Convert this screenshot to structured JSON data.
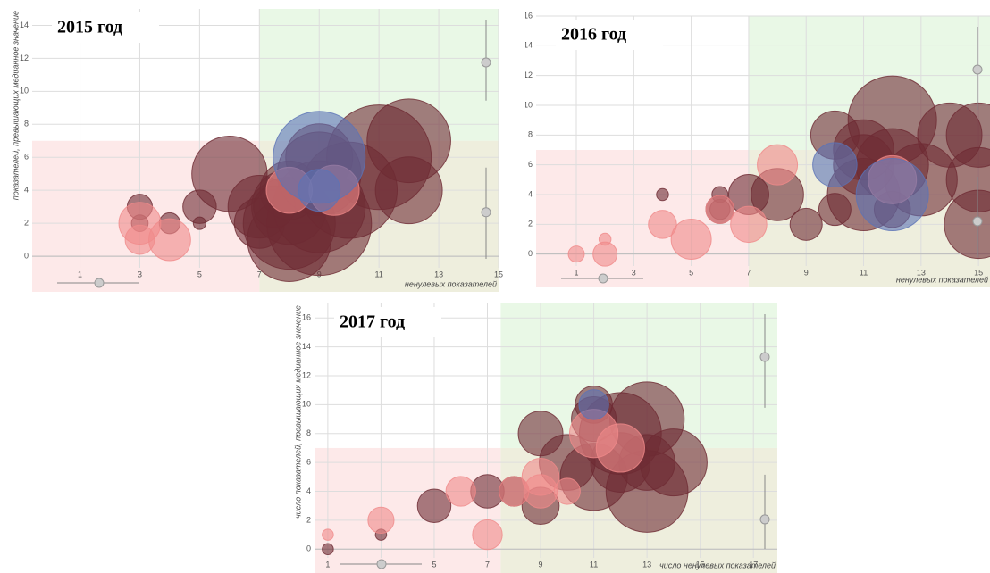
{
  "chart_data": [
    {
      "type": "bubble",
      "title": "2015 год",
      "x_label": "ненулевых показателей",
      "y_label": "показателей, превышающих медианное значение",
      "xlim": [
        -0.6,
        15
      ],
      "ylim": [
        -0.7,
        15
      ],
      "xticks": [
        1,
        3,
        5,
        7,
        9,
        11,
        13,
        15
      ],
      "yticks": [
        0,
        2,
        4,
        6,
        8,
        10,
        12,
        14
      ],
      "grid": true,
      "quadrants": {
        "x": 7,
        "y": 7
      },
      "series": [
        {
          "color": "#6e2b33",
          "x": [
            3,
            3,
            4,
            5,
            5,
            6,
            7,
            7,
            8,
            8,
            8,
            9,
            9,
            9,
            9,
            10,
            11,
            12,
            12,
            8,
            7.5
          ],
          "values": [
            3,
            2,
            2,
            3,
            2,
            5,
            3,
            2,
            2,
            1,
            3,
            2,
            3,
            5,
            6,
            4,
            6,
            7,
            4,
            4,
            3
          ],
          "sizes": [
            0.6,
            0.4,
            0.5,
            0.8,
            0.3,
            1.8,
            1.5,
            1.2,
            2.2,
            2.0,
            1.8,
            2.5,
            2.2,
            2.0,
            1.6,
            2.3,
            2.5,
            2.0,
            1.6,
            1.4,
            1.0
          ]
        },
        {
          "color": "#f08a8a",
          "x": [
            3,
            3,
            4,
            8,
            9.5
          ],
          "values": [
            2,
            1,
            1,
            4,
            4
          ],
          "sizes": [
            1.0,
            0.7,
            1.0,
            1.1,
            1.2
          ]
        },
        {
          "color": "#5b73b6",
          "x": [
            9,
            9
          ],
          "values": [
            6,
            4
          ],
          "sizes": [
            2.2,
            1.0
          ]
        }
      ]
    },
    {
      "type": "bubble",
      "title": "2016 год",
      "x_label": "ненулевых показателей",
      "y_label": "показателей, превышающих медианное значение",
      "xlim": [
        -0.4,
        15.4
      ],
      "ylim": [
        -0.8,
        16
      ],
      "xticks": [
        1,
        3,
        5,
        7,
        9,
        11,
        13,
        15
      ],
      "yticks": [
        0,
        2,
        4,
        6,
        8,
        10,
        12,
        14,
        16
      ],
      "grid": true,
      "quadrants": {
        "x": 7,
        "y": 7
      },
      "series": [
        {
          "color": "#6e2b33",
          "x": [
            4,
            6,
            6,
            6,
            7,
            8,
            9,
            10,
            10,
            11,
            11,
            12,
            12,
            12,
            13,
            14,
            15,
            15,
            15,
            11
          ],
          "values": [
            4,
            4,
            3,
            3,
            4,
            4,
            2,
            3,
            8,
            4,
            7,
            9,
            6,
            3,
            5,
            8,
            8,
            5,
            2,
            6
          ],
          "sizes": [
            0.3,
            0.4,
            0.7,
            0.5,
            1.0,
            1.3,
            0.8,
            0.8,
            1.2,
            1.8,
            1.5,
            2.2,
            1.8,
            0.9,
            1.8,
            1.6,
            1.6,
            1.6,
            1.7,
            1.5
          ]
        },
        {
          "color": "#f08a8a",
          "x": [
            1,
            2,
            2,
            4,
            5,
            7,
            8,
            6,
            12
          ],
          "values": [
            0,
            0,
            1,
            2,
            1,
            2,
            6,
            3,
            5
          ],
          "sizes": [
            0.4,
            0.6,
            0.3,
            0.7,
            1.0,
            0.9,
            1.0,
            0.7,
            1.2
          ]
        },
        {
          "color": "#5b73b6",
          "x": [
            10,
            12
          ],
          "values": [
            6,
            4
          ],
          "sizes": [
            1.1,
            1.8
          ]
        }
      ]
    },
    {
      "type": "bubble",
      "title": "2017 год",
      "x_label": "число ненулевых показателей",
      "y_label": "число показателей, превышающих медианное значение",
      "xlim": [
        0.5,
        17.9
      ],
      "ylim": [
        -0.6,
        17
      ],
      "xticks": [
        1,
        3,
        5,
        7,
        9,
        11,
        13,
        15,
        17
      ],
      "yticks": [
        0,
        2,
        4,
        6,
        8,
        10,
        12,
        14,
        16
      ],
      "grid": true,
      "quadrants": {
        "x": 7.5,
        "y": 7
      },
      "series": [
        {
          "color": "#6e2b33",
          "x": [
            1,
            3,
            5,
            7,
            8,
            9,
            9,
            10,
            11,
            11,
            12,
            12,
            13,
            13,
            13,
            14,
            11
          ],
          "values": [
            0,
            1,
            3,
            4,
            4,
            3,
            8,
            6,
            5,
            9,
            8,
            6,
            9,
            4,
            6,
            6,
            10
          ],
          "sizes": [
            0.3,
            0.3,
            0.9,
            0.9,
            0.8,
            1.0,
            1.2,
            1.5,
            1.8,
            1.2,
            2.2,
            1.6,
            2.0,
            2.2,
            1.5,
            1.8,
            1.0
          ]
        },
        {
          "color": "#f08a8a",
          "x": [
            1,
            3,
            6,
            7,
            8,
            9,
            9,
            10,
            11,
            12
          ],
          "values": [
            1,
            2,
            4,
            1,
            4,
            5,
            4,
            4,
            8,
            7
          ],
          "sizes": [
            0.3,
            0.7,
            0.8,
            0.8,
            0.8,
            1.0,
            0.9,
            0.7,
            1.3,
            1.3
          ]
        },
        {
          "color": "#5b73b6",
          "x": [
            11
          ],
          "values": [
            10
          ],
          "sizes": [
            0.8
          ]
        }
      ]
    }
  ]
}
